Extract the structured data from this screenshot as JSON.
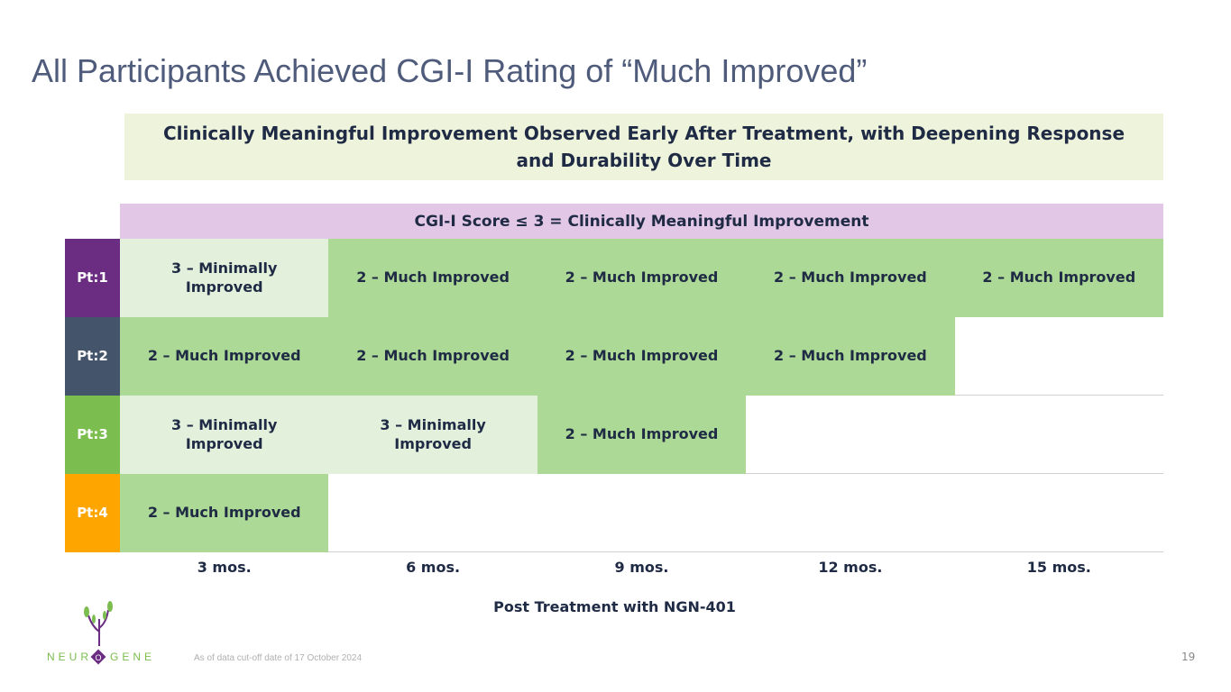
{
  "header": {
    "title": "All Participants Achieved CGI-I Rating of “Much Improved”"
  },
  "banner": "Clinically Meaningful Improvement Observed Early After Treatment, with Deepening Response and Durability Over Time",
  "table": {
    "caption": "CGI-I Score ≤ 3 = Clinically Meaningful Improvement",
    "rows": [
      {
        "label": "Pt:1",
        "color": "#6b2d82",
        "cells": [
          "3 – Minimally Improved",
          "2 – Much Improved",
          "2 – Much Improved",
          "2 – Much Improved",
          "2 – Much Improved"
        ]
      },
      {
        "label": "Pt:2",
        "color": "#44546a",
        "cells": [
          "2 – Much Improved",
          "2 – Much Improved",
          "2 – Much Improved",
          "2 – Much Improved"
        ]
      },
      {
        "label": "Pt:3",
        "color": "#7cbd4f",
        "cells": [
          "3 – Minimally Improved",
          "3 – Minimally Improved",
          "2 – Much Improved"
        ]
      },
      {
        "label": "Pt:4",
        "color": "#ffa500",
        "cells": [
          "2 – Much Improved"
        ]
      }
    ],
    "columns": [
      "3 mos.",
      "6 mos.",
      "9 mos.",
      "12 mos.",
      "15 mos."
    ],
    "footer": "Post Treatment with NGN-401"
  },
  "footnote": "As of data cut-off date of 17 October 2024",
  "page_number": "19",
  "logo": {
    "left": "NEUR",
    "mark": "O",
    "right": "GENE"
  }
}
